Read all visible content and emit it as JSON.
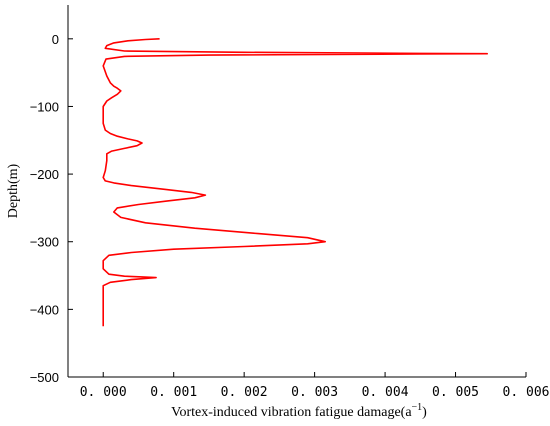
{
  "chart_data": {
    "type": "line",
    "xlabel": "Vortex-induced vibration fatigue damage(a",
    "xlabel_sup": "−1",
    "xlabel_close": ")",
    "ylabel": "Depth(m)",
    "xlim": [
      -0.0005,
      0.006
    ],
    "ylim": [
      -500,
      50
    ],
    "xticks": [
      0.0,
      0.001,
      0.002,
      0.003,
      0.004,
      0.005,
      0.006
    ],
    "xtick_labels": [
      "0. 000",
      "0. 001",
      "0. 002",
      "0. 003",
      "0. 004",
      "0. 005",
      "0. 006"
    ],
    "yticks": [
      0,
      -100,
      -200,
      -300,
      -400,
      -500
    ],
    "ytick_labels": [
      "0",
      "−100",
      "−200",
      "−300",
      "−400",
      "−500"
    ],
    "grid": false,
    "series": [
      {
        "color": "#ff0000",
        "x": [
          0.0008,
          0.0006,
          0.00035,
          0.00015,
          5e-05,
          3e-05,
          0.0003,
          0.002,
          0.0045,
          0.00545,
          0.0045,
          0.0015,
          0.0003,
          4e-05,
          0.0,
          5e-05,
          0.0001,
          0.00015,
          0.0002,
          0.00025,
          0.0002,
          0.00012,
          5e-05,
          0.0,
          0.0,
          0.0,
          3e-05,
          0.0001,
          0.0002,
          0.00035,
          0.00048,
          0.00055,
          0.00048,
          0.0003,
          0.00012,
          5e-05,
          5e-05,
          3e-05,
          0.0,
          3e-05,
          0.00015,
          0.0004,
          0.0009,
          0.00125,
          0.00145,
          0.0013,
          0.0009,
          0.0005,
          0.0002,
          0.00015,
          0.00025,
          0.0006,
          0.0013,
          0.0022,
          0.0029,
          0.00315,
          0.0029,
          0.002,
          0.001,
          0.0004,
          8e-05,
          0.0,
          0.0,
          8e-05,
          0.0003,
          0.00055,
          0.00075,
          0.0004,
          0.0001,
          0.0,
          0.0,
          0.0,
          0.0,
          0.0
        ],
        "y": [
          0,
          -1,
          -3,
          -6,
          -10,
          -14,
          -18,
          -20,
          -21.5,
          -22,
          -22.5,
          -24,
          -26,
          -30,
          -40,
          -55,
          -65,
          -70,
          -73,
          -77,
          -82,
          -87,
          -92,
          -100,
          -110,
          -125,
          -135,
          -140,
          -144,
          -148,
          -151,
          -154,
          -158,
          -162,
          -166,
          -170,
          -180,
          -195,
          -205,
          -210,
          -213,
          -217,
          -223,
          -227,
          -231,
          -235,
          -240,
          -245,
          -250,
          -256,
          -264,
          -272,
          -280,
          -288,
          -294,
          -300,
          -303,
          -307,
          -311,
          -316,
          -320,
          -328,
          -340,
          -348,
          -351,
          -352,
          -353,
          -356,
          -360,
          -365,
          -380,
          -400,
          -415,
          -425
        ]
      }
    ]
  }
}
